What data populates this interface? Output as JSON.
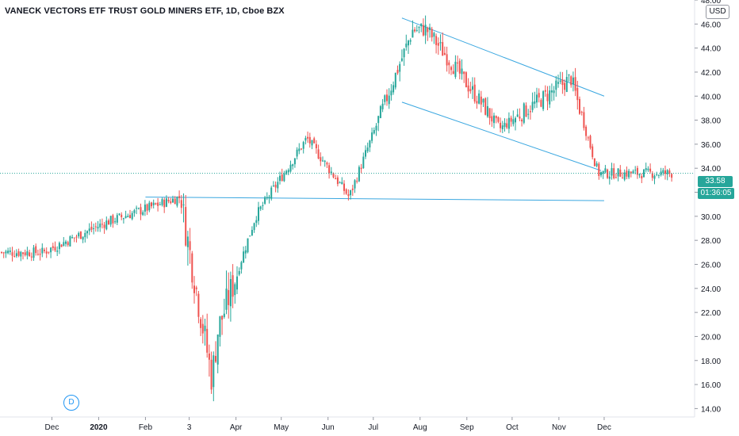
{
  "header": {
    "title": "VANECK VECTORS ETF TRUST GOLD MINERS ETF, 1D, Cboe BZX",
    "currency_badge": "USD"
  },
  "price_scale": {
    "last_price_label": "33.58",
    "countdown_label": "01:36:05"
  },
  "event_marker": {
    "label": "D"
  },
  "colors": {
    "up": "#26a69a",
    "down": "#ef5350",
    "trendline": "#3aa7e0",
    "last_price": "#26a69a",
    "axis_text": "#131722"
  },
  "chart_data": {
    "type": "candlestick",
    "title": "VANECK VECTORS ETF TRUST GOLD MINERS ETF, 1D, Cboe BZX",
    "ylim": [
      13.3,
      48.0
    ],
    "y_ticks": [
      "48.00",
      "46.00",
      "44.00",
      "42.00",
      "40.00",
      "38.00",
      "36.00",
      "34.00",
      "32.00",
      "30.00",
      "28.00",
      "26.00",
      "24.00",
      "22.00",
      "20.00",
      "18.00",
      "16.00",
      "14.00"
    ],
    "x_ticks": [
      "Dec",
      "2020",
      "Feb",
      "3",
      "Apr",
      "May",
      "Jun",
      "Jul",
      "Aug",
      "Sep",
      "Oct",
      "Nov",
      "Dec"
    ],
    "last_price": 33.58,
    "grid": false,
    "trendlines": [
      {
        "name": "upper-channel",
        "from": [
          "2020-07-20",
          46.5
        ],
        "to": [
          "2020-12-01",
          40.0
        ]
      },
      {
        "name": "lower-channel",
        "from": [
          "2020-07-20",
          39.5
        ],
        "to": [
          "2020-11-29",
          33.8
        ]
      },
      {
        "name": "support",
        "from": [
          "2020-02-01",
          31.6
        ],
        "to": [
          "2020-12-01",
          31.3
        ]
      }
    ],
    "key_prices": [
      {
        "date": "2019-11-25",
        "close": 27.0
      },
      {
        "date": "2020-01-06",
        "close": 29.5
      },
      {
        "date": "2020-02-24",
        "close": 31.6
      },
      {
        "date": "2020-03-16",
        "close": 16.5
      },
      {
        "date": "2020-03-20",
        "close": 20.5
      },
      {
        "date": "2020-04-14",
        "close": 30.0
      },
      {
        "date": "2020-05-18",
        "close": 36.5
      },
      {
        "date": "2020-06-15",
        "close": 31.6
      },
      {
        "date": "2020-07-27",
        "close": 45.5
      },
      {
        "date": "2020-08-05",
        "close": 45.6
      },
      {
        "date": "2020-09-23",
        "close": 37.3
      },
      {
        "date": "2020-11-09",
        "close": 41.5
      },
      {
        "date": "2020-11-27",
        "close": 33.58
      }
    ]
  }
}
